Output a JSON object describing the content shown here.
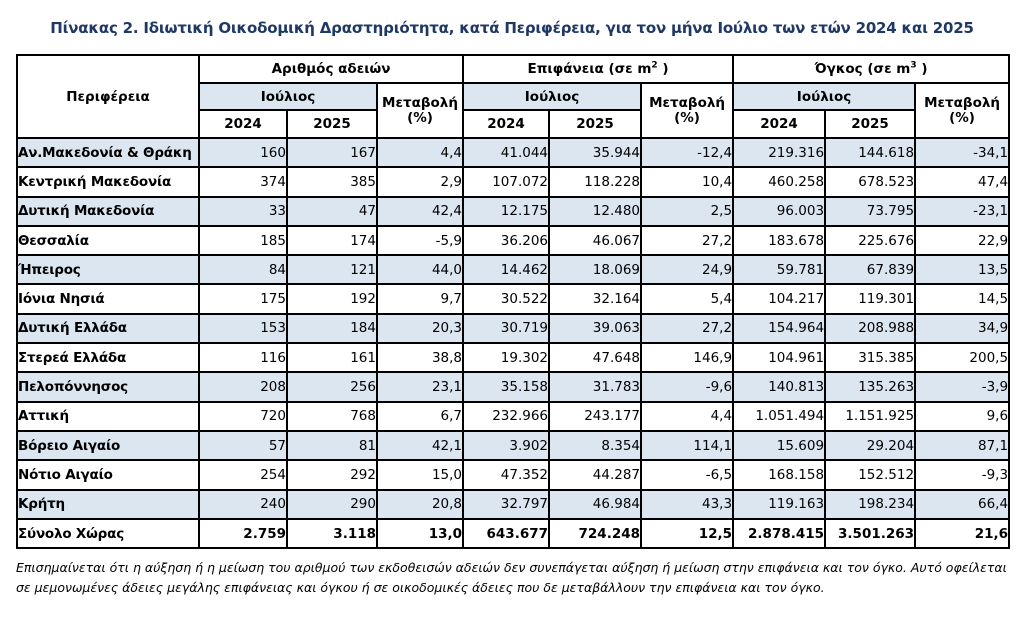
{
  "page": {
    "title": "Πίνακας 2. Ιδιωτική Οικοδομική Δραστηριότητα, κατά  Περιφέρεια, για τον μήνα Ιούλιο των ετών 2024 και 2025",
    "footnote": "Επισημαίνεται ότι η αύξηση ή η μείωση του αριθμού των εκδοθεισών αδειών δεν συνεπάγεται αύξηση ή μείωση στην επιφάνεια και τον όγκο. Αυτό οφείλεται σε μεμονωμένες άδειες μεγάλης επιφάνειας και όγκου ή σε οικοδομικές άδειες που δε μεταβάλλουν την επιφάνεια και τον όγκο."
  },
  "colors": {
    "header_fill": "#dce6f1",
    "row_stripe_fill": "#dce6f1",
    "border": "#000000",
    "title_text": "#1f3864"
  },
  "table": {
    "region_header": "Περιφέρεια",
    "month_header": "Ιούλιος",
    "change_header_line1": "Μεταβολή",
    "change_header_line2": "(%)",
    "years": [
      "2024",
      "2025"
    ],
    "groups": [
      {
        "label": "Αριθμός αδειών",
        "sup": "",
        "tail": ""
      },
      {
        "label": "Επιφάνεια (σε m",
        "sup": "2",
        "tail": " )"
      },
      {
        "label": "Όγκος (σε m",
        "sup": "3",
        "tail": " )"
      }
    ],
    "rows": [
      {
        "region": "Αν.Μακεδονία & Θράκη",
        "values": [
          "160",
          "167",
          "4,4",
          "41.044",
          "35.944",
          "-12,4",
          "219.316",
          "144.618",
          "-34,1"
        ]
      },
      {
        "region": "Κεντρική Μακεδονία",
        "values": [
          "374",
          "385",
          "2,9",
          "107.072",
          "118.228",
          "10,4",
          "460.258",
          "678.523",
          "47,4"
        ]
      },
      {
        "region": "Δυτική Μακεδονία",
        "values": [
          "33",
          "47",
          "42,4",
          "12.175",
          "12.480",
          "2,5",
          "96.003",
          "73.795",
          "-23,1"
        ]
      },
      {
        "region": "Θεσσαλία",
        "values": [
          "185",
          "174",
          "-5,9",
          "36.206",
          "46.067",
          "27,2",
          "183.678",
          "225.676",
          "22,9"
        ]
      },
      {
        "region": "Ήπειρος",
        "values": [
          "84",
          "121",
          "44,0",
          "14.462",
          "18.069",
          "24,9",
          "59.781",
          "67.839",
          "13,5"
        ]
      },
      {
        "region": "Ιόνια Νησιά",
        "values": [
          "175",
          "192",
          "9,7",
          "30.522",
          "32.164",
          "5,4",
          "104.217",
          "119.301",
          "14,5"
        ]
      },
      {
        "region": "Δυτική Ελλάδα",
        "values": [
          "153",
          "184",
          "20,3",
          "30.719",
          "39.063",
          "27,2",
          "154.964",
          "208.988",
          "34,9"
        ]
      },
      {
        "region": "Στερεά Ελλάδα",
        "values": [
          "116",
          "161",
          "38,8",
          "19.302",
          "47.648",
          "146,9",
          "104.961",
          "315.385",
          "200,5"
        ]
      },
      {
        "region": "Πελοπόννησος",
        "values": [
          "208",
          "256",
          "23,1",
          "35.158",
          "31.783",
          "-9,6",
          "140.813",
          "135.263",
          "-3,9"
        ]
      },
      {
        "region": "Αττική",
        "values": [
          "720",
          "768",
          "6,7",
          "232.966",
          "243.177",
          "4,4",
          "1.051.494",
          "1.151.925",
          "9,6"
        ]
      },
      {
        "region": "Βόρειο Αιγαίο",
        "values": [
          "57",
          "81",
          "42,1",
          "3.902",
          "8.354",
          "114,1",
          "15.609",
          "29.204",
          "87,1"
        ]
      },
      {
        "region": "Νότιο Αιγαίο",
        "values": [
          "254",
          "292",
          "15,0",
          "47.352",
          "44.287",
          "-6,5",
          "168.158",
          "152.512",
          "-9,3"
        ]
      },
      {
        "region": "Κρήτη",
        "values": [
          "240",
          "290",
          "20,8",
          "32.797",
          "46.984",
          "43,3",
          "119.163",
          "198.234",
          "66,4"
        ]
      },
      {
        "region": "Σύνολο Χώρας",
        "is_total": true,
        "values": [
          "2.759",
          "3.118",
          "13,0",
          "643.677",
          "724.248",
          "12,5",
          "2.878.415",
          "3.501.263",
          "21,6"
        ]
      }
    ]
  }
}
